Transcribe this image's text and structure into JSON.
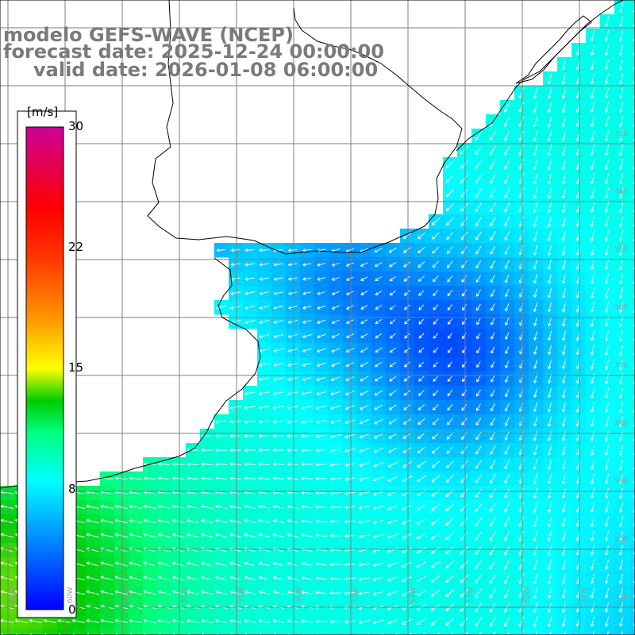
{
  "title": {
    "line1": "modelo GEFS-WAVE (NCEP)",
    "line2": "forecast date: 2025-12-24 00:00:00",
    "line3": "valid date: 2026-01-08 06:00:00"
  },
  "colorbar": {
    "unit": "[m/s]",
    "ticks": [
      "30",
      "22",
      "15",
      "8",
      "0"
    ],
    "tick_values": [
      30,
      22,
      15,
      8,
      0
    ],
    "stops": [
      {
        "v": 0,
        "c": "#0000ff"
      },
      {
        "v": 4,
        "c": "#0080ff"
      },
      {
        "v": 8,
        "c": "#00ffff"
      },
      {
        "v": 11,
        "c": "#00ff80"
      },
      {
        "v": 13,
        "c": "#00cc00"
      },
      {
        "v": 15,
        "c": "#ffff00"
      },
      {
        "v": 18,
        "c": "#ff9900"
      },
      {
        "v": 22,
        "c": "#ff3300"
      },
      {
        "v": 25,
        "c": "#ff0000"
      },
      {
        "v": 30,
        "c": "#cc0099"
      }
    ]
  },
  "map": {
    "variable": "wind speed and direction",
    "lon_labels": [
      "61W",
      "60W",
      "59W",
      "58W",
      "57W",
      "56W",
      "55W",
      "54W",
      "53W",
      "52W",
      "51W"
    ],
    "lat_labels": [
      "33S",
      "34S",
      "35S",
      "36S",
      "37S",
      "38S",
      "39S",
      "40S",
      "41S"
    ],
    "grid_color": "#7f7f7f",
    "land_color": "#ffffff"
  }
}
